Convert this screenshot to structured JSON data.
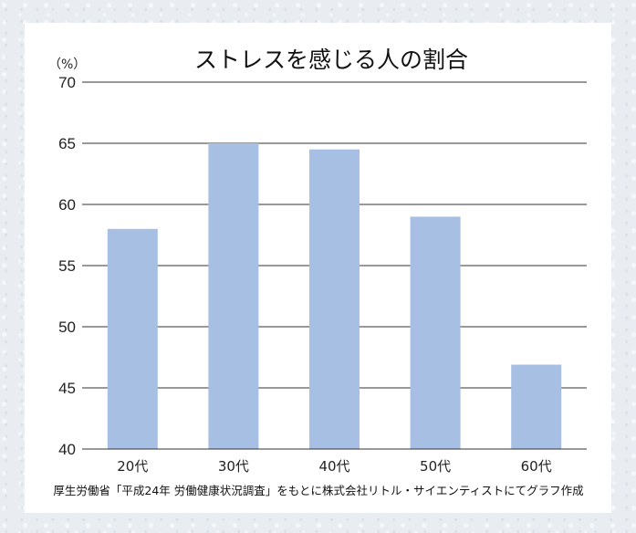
{
  "chart_data": {
    "type": "bar",
    "title": "ストレスを感じる人の割合",
    "ylabel": "（%）",
    "xlabel": "",
    "categories": [
      "20代",
      "30代",
      "40代",
      "50代",
      "60代"
    ],
    "values": [
      58.0,
      65.0,
      64.5,
      59.0,
      46.9
    ],
    "ylim": [
      40,
      70
    ],
    "yticks": [
      40,
      45,
      50,
      55,
      60,
      65,
      70
    ],
    "grid": true,
    "bar_color": "#a7bfe2",
    "source": "厚生労働省「平成24年 労働健康状況調査」をもとに株式会社リトル・サイエンティストにてグラフ作成"
  }
}
